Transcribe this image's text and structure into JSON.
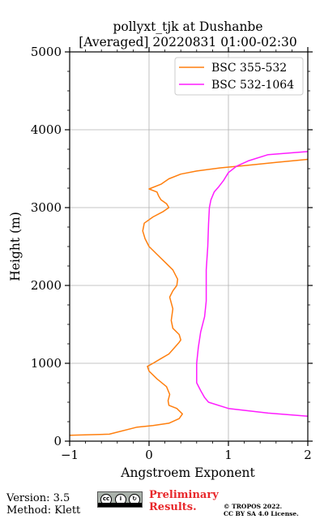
{
  "chart_data": {
    "type": "line",
    "title_line1": "pollyxt_tjk at Dushanbe",
    "title_line2": "[Averaged] 20220831 01:00-02:30",
    "xlabel": "Angstroem Exponent",
    "ylabel": "Height (m)",
    "xlim": [
      -1,
      2
    ],
    "ylim": [
      0,
      5000
    ],
    "xticks": [
      -1,
      0,
      1,
      2
    ],
    "yticks": [
      0,
      1000,
      2000,
      3000,
      4000,
      5000
    ],
    "grid": true,
    "legend_position": "top-right",
    "series": [
      {
        "name": "BSC 355-532",
        "color": "#ff7f0e",
        "x": [
          -1.0,
          -0.5,
          -0.15,
          0.05,
          0.25,
          0.38,
          0.42,
          0.35,
          0.25,
          0.24,
          0.26,
          0.22,
          0.1,
          0.0,
          -0.02,
          0.05,
          0.15,
          0.25,
          0.32,
          0.38,
          0.4,
          0.38,
          0.3,
          0.28,
          0.3,
          0.26,
          0.3,
          0.35,
          0.36,
          0.3,
          0.2,
          0.1,
          0.0,
          -0.05,
          -0.08,
          -0.06,
          0.05,
          0.18,
          0.25,
          0.22,
          0.15,
          0.12,
          0.1,
          0.0,
          0.15,
          0.25,
          0.4,
          0.6,
          0.9,
          1.2,
          1.6,
          2.0
        ],
        "y": [
          75,
          90,
          180,
          200,
          230,
          290,
          350,
          420,
          460,
          520,
          600,
          700,
          800,
          900,
          960,
          1000,
          1060,
          1120,
          1200,
          1270,
          1300,
          1370,
          1450,
          1550,
          1700,
          1850,
          1930,
          2000,
          2080,
          2200,
          2300,
          2400,
          2500,
          2600,
          2700,
          2800,
          2880,
          2950,
          3000,
          3050,
          3100,
          3150,
          3200,
          3240,
          3300,
          3370,
          3430,
          3470,
          3510,
          3540,
          3580,
          3620
        ]
      },
      {
        "name": "BSC 532-1064",
        "color": "#ff1cff",
        "x": [
          2.0,
          1.5,
          1.0,
          0.75,
          0.7,
          0.65,
          0.6,
          0.6,
          0.62,
          0.65,
          0.7,
          0.72,
          0.72,
          0.72,
          0.74,
          0.75,
          0.76,
          0.78,
          0.82,
          0.88,
          0.94,
          1.0,
          1.1,
          1.25,
          1.5,
          2.0
        ],
        "y": [
          320,
          360,
          420,
          500,
          560,
          650,
          750,
          1000,
          1200,
          1400,
          1600,
          1800,
          2000,
          2200,
          2500,
          2800,
          3000,
          3100,
          3200,
          3270,
          3350,
          3450,
          3530,
          3600,
          3680,
          3720
        ]
      }
    ]
  },
  "footer": {
    "version": "Version: 3.5",
    "method": "Method: Klett",
    "cc_badge": "cc-by-sa-icon",
    "preliminary_line1": "Preliminary",
    "preliminary_line2": "Results.",
    "license_line1": "© TROPOS 2022.",
    "license_line2": "CC BY SA 4.0 License.",
    "preliminary_color": "#e8282b"
  }
}
